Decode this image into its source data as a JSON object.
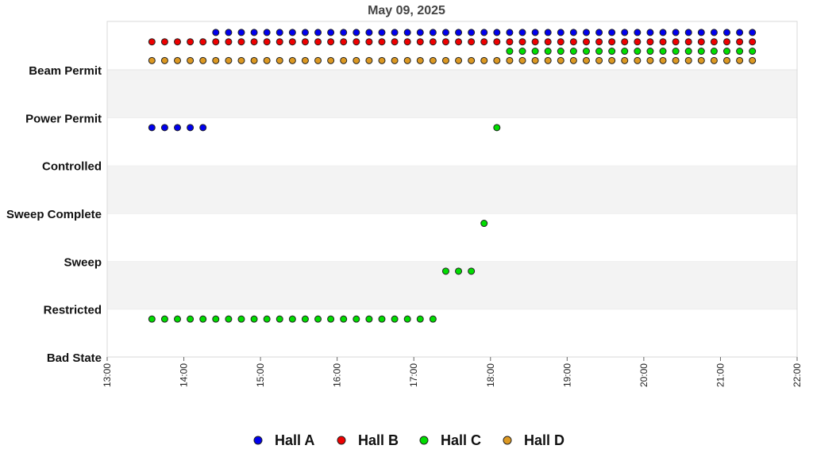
{
  "chart_data": {
    "type": "scatter",
    "title": "May 09, 2025",
    "xlabel": "",
    "ylabel": "",
    "x_ticks": [
      "13:00",
      "14:00",
      "15:00",
      "16:00",
      "17:00",
      "18:00",
      "19:00",
      "20:00",
      "21:00",
      "22:00"
    ],
    "xlim": [
      "13:00",
      "22:00"
    ],
    "y_categories": [
      "Bad State",
      "Restricted",
      "Sweep",
      "Sweep Complete",
      "Controlled",
      "Power Permit",
      "Beam Permit"
    ],
    "sample_interval_minutes": 10,
    "alternating_band_color": "#f3f3f3",
    "legend_position": "bottom",
    "series": [
      {
        "name": "Hall A",
        "color": "#0000ee",
        "segments": [
          {
            "start": "13:35",
            "end": "14:15",
            "state": "Power Permit",
            "level": 0
          },
          {
            "start": "14:25",
            "end": "21:25",
            "state": "Beam Permit",
            "level": 3
          }
        ]
      },
      {
        "name": "Hall B",
        "color": "#ee0000",
        "segments": [
          {
            "start": "13:35",
            "end": "21:25",
            "state": "Beam Permit",
            "level": 2
          }
        ]
      },
      {
        "name": "Hall C",
        "color": "#00dd00",
        "segments": [
          {
            "start": "13:35",
            "end": "17:15",
            "state": "Restricted",
            "level": 0
          },
          {
            "start": "17:25",
            "end": "17:45",
            "state": "Sweep",
            "level": 0
          },
          {
            "start": "17:55",
            "end": "17:55",
            "state": "Sweep Complete",
            "level": 0
          },
          {
            "start": "18:05",
            "end": "18:05",
            "state": "Power Permit",
            "level": 0
          },
          {
            "start": "18:15",
            "end": "21:25",
            "state": "Beam Permit",
            "level": 1
          }
        ]
      },
      {
        "name": "Hall D",
        "color": "#dd9922",
        "segments": [
          {
            "start": "13:35",
            "end": "21:25",
            "state": "Beam Permit",
            "level": 0
          }
        ]
      }
    ]
  }
}
